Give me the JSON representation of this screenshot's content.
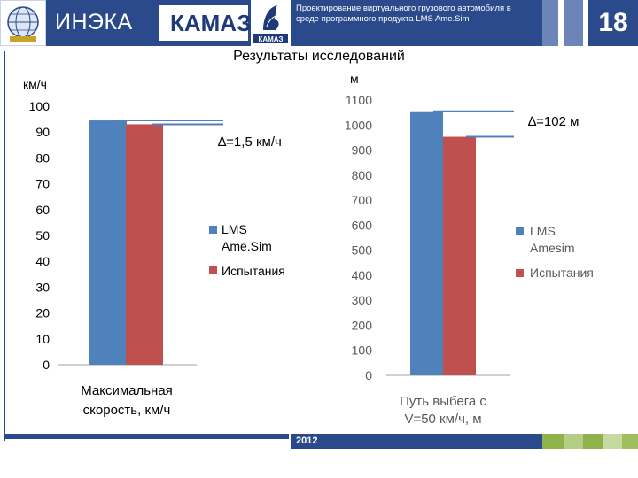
{
  "header": {
    "org_name": "ИНЭКА",
    "brand_name": "КАМАЗ",
    "logo_small_text": "КАМАЗ",
    "presentation_title": "Проектирование виртуального грузового автомобиля в среде программного продукта LMS Ame.Sim",
    "slide_number": "18"
  },
  "footer": {
    "year": "2012"
  },
  "slide_title": "Результаты исследований",
  "colors": {
    "navy": "#2a4a8c",
    "lms": "#4f81bd",
    "test": "#c0504d",
    "delta_line": "#4f81bd"
  },
  "chart_data": [
    {
      "type": "bar",
      "title": "",
      "ylabel": "км/ч",
      "xlabel": "Максимальная скорость, км/ч",
      "ylim": [
        0,
        100
      ],
      "yticks": [
        0,
        10,
        20,
        30,
        40,
        50,
        60,
        70,
        80,
        90,
        100
      ],
      "ytick_labels": [
        "0",
        "10",
        "20",
        "30",
        "40",
        "50",
        "60",
        "70",
        "80",
        "90",
        "100"
      ],
      "series": [
        {
          "name": "LMS Ame.Sim",
          "values": [
            94.5
          ]
        },
        {
          "name": "Испытания",
          "values": [
            93
          ]
        }
      ],
      "legend": [
        "LMS",
        "Ame.Sim",
        "Испытания"
      ],
      "annotation": "∆=1,5 км/ч",
      "category_label_lines": [
        "Максимальная",
        "скорость, км/ч"
      ]
    },
    {
      "type": "bar",
      "title": "",
      "ylabel": "м",
      "xlabel": "Путь выбега с V=50 км/ч, м",
      "ylim": [
        0,
        1100
      ],
      "yticks": [
        0,
        100,
        200,
        300,
        400,
        500,
        600,
        700,
        800,
        900,
        1000,
        1100
      ],
      "ytick_labels": [
        "0",
        "100",
        "200",
        "300",
        "400",
        "500",
        "600",
        "700",
        "800",
        "900",
        "1000",
        "1100"
      ],
      "series": [
        {
          "name": "LMS Amesim",
          "values": [
            1055
          ]
        },
        {
          "name": "Испытания",
          "values": [
            953
          ]
        }
      ],
      "legend": [
        "LMS",
        "Amesim",
        "Испытания"
      ],
      "annotation": "∆=102 м",
      "category_label_lines": [
        "Путь выбега с",
        "V=50 км/ч, м"
      ]
    }
  ]
}
